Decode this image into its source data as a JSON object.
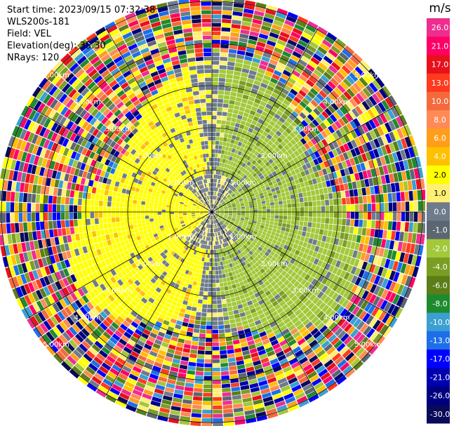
{
  "info": {
    "start_time": "Start time: 2023/09/15 07:32:38",
    "site": "WLS200s-181",
    "field": "Field: VEL",
    "elevation": "Elevation(deg): 35.30",
    "nrays": "NRays: 120"
  },
  "colorbar": {
    "unit": "m/s",
    "ticks": [
      "26.0",
      "21.0",
      "17.0",
      "13.0",
      "10.0",
      "8.0",
      "6.0",
      "4.0",
      "2.0",
      "1.0",
      "0.0",
      "-1.0",
      "-2.0",
      "-4.0",
      "-6.0",
      "-8.0",
      "-10.0",
      "-13.0",
      "-17.0",
      "-21.0",
      "-26.0",
      "-30.0"
    ],
    "colors": [
      "#ee2d8f",
      "#ff0066",
      "#e8101a",
      "#ff3a1f",
      "#f56a3c",
      "#ff8a55",
      "#ff9e1a",
      "#ffc000",
      "#ffff00",
      "#ffef73",
      "#6e7b8b",
      "#5c6670",
      "#a3c83a",
      "#7a9e24",
      "#5b7e18",
      "#1e8a2e",
      "#3b9fd1",
      "#1d6ee8",
      "#0000ff",
      "#0000b0",
      "#000080",
      "#0a0a5a"
    ]
  },
  "chart_data": {
    "type": "heatmap",
    "projection": "polar PPI",
    "field": "VEL",
    "units": "m/s",
    "nrays": 120,
    "range_rings_km": [
      1.0,
      2.0,
      3.0,
      4.0,
      5.0
    ],
    "ring_labels": [
      "1.00km",
      "2.00km",
      "3.00km",
      "4.00km",
      "5.00km"
    ],
    "west_dominant_value": 2.0,
    "east_dominant_value": -2.0
  }
}
